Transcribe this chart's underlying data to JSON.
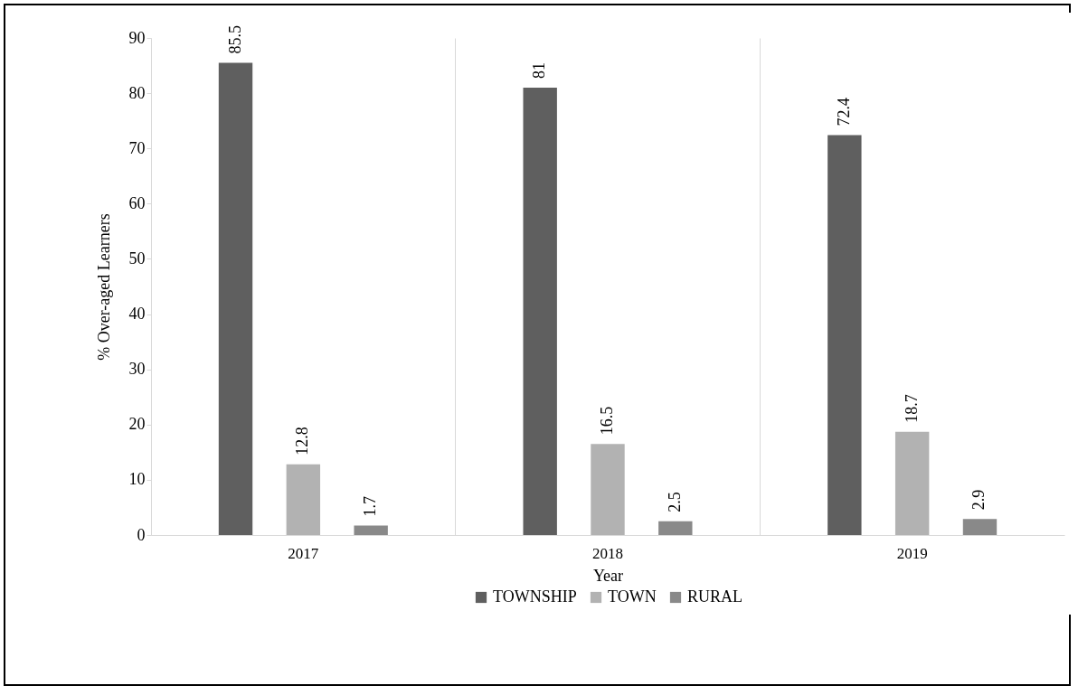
{
  "chart_data": {
    "type": "bar",
    "xlabel": "Year",
    "ylabel": "% Over-aged  Learners",
    "categories": [
      "2017",
      "2018",
      "2019"
    ],
    "series": [
      {
        "name": "TOWNSHIP",
        "color": "#5f5f5f",
        "values": [
          85.5,
          81,
          72.4
        ]
      },
      {
        "name": "TOWN",
        "color": "#b2b2b2",
        "values": [
          12.8,
          16.5,
          18.7
        ]
      },
      {
        "name": "RURAL",
        "color": "#898989",
        "values": [
          1.7,
          2.5,
          2.9
        ]
      }
    ],
    "ylim": [
      0,
      90
    ],
    "yticks": [
      0,
      10,
      20,
      30,
      40,
      50,
      60,
      70,
      80,
      90
    ],
    "grid": "x",
    "legend": "bottom",
    "data_labels": true
  }
}
